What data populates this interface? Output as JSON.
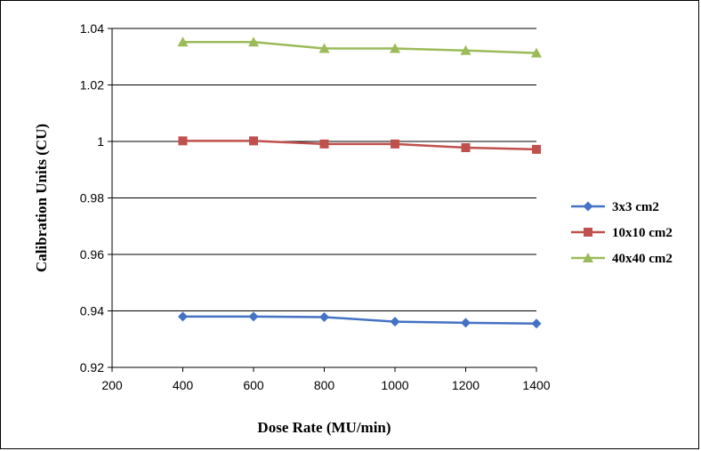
{
  "chart_data": {
    "type": "line",
    "xlabel": "Dose Rate (MU/min)",
    "ylabel": "Calibration Units (CU)",
    "xlim": [
      200,
      1400
    ],
    "ylim": [
      0.92,
      1.04
    ],
    "xticks": [
      200,
      400,
      600,
      800,
      1000,
      1200,
      1400
    ],
    "yticks": [
      0.92,
      0.94,
      0.96,
      0.98,
      1,
      1.02,
      1.04
    ],
    "ytick_labels": [
      "0.92",
      "0.94",
      "0.96",
      "0.98",
      "1",
      "1.02",
      "1.04"
    ],
    "grid": "horizontal",
    "legend_position": "right",
    "x": [
      400,
      600,
      800,
      1000,
      1200,
      1400
    ],
    "series": [
      {
        "name": "3x3 cm2",
        "color": "#4472c4",
        "marker": "diamond",
        "values": [
          0.938,
          0.938,
          0.9378,
          0.9362,
          0.9358,
          0.9355
        ]
      },
      {
        "name": "10x10 cm2",
        "color": "#c0504d",
        "marker": "square",
        "values": [
          1.0002,
          1.0002,
          0.9991,
          0.9991,
          0.9978,
          0.9972
        ]
      },
      {
        "name": "40x40 cm2",
        "color": "#9bbb59",
        "marker": "triangle",
        "values": [
          1.0352,
          1.0352,
          1.0329,
          1.0329,
          1.0322,
          1.0313
        ]
      }
    ]
  }
}
